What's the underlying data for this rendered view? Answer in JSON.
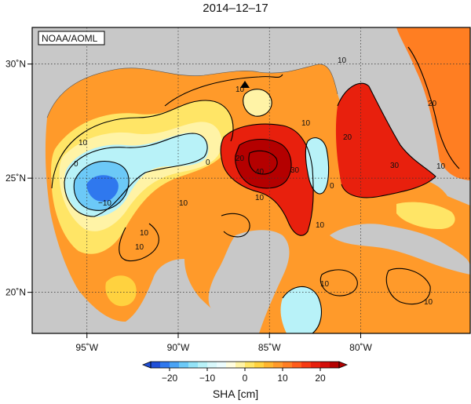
{
  "title": "2014–12–17",
  "credit": "NOAA/AOML",
  "colorbar": {
    "label": "SHA [cm]",
    "min": -25,
    "max": 25,
    "step": 2.5,
    "tick_values": [
      -20,
      -10,
      0,
      10,
      20
    ],
    "tick_labels": [
      "−20",
      "−10",
      "0",
      "10",
      "20"
    ],
    "colors": [
      "#1f4fd8",
      "#2f78ee",
      "#4aa3f5",
      "#6cc9f7",
      "#93e3f7",
      "#b8f2f8",
      "#d8f8fb",
      "#ecfcfd",
      "#fffde0",
      "#fff3a6",
      "#ffe566",
      "#ffd23f",
      "#ffb52e",
      "#ff9a2a",
      "#ff7e22",
      "#ff5c1a",
      "#f73a12",
      "#e8200d",
      "#d40e0a",
      "#b40000"
    ]
  },
  "map": {
    "x_ticks": [
      {
        "lon": -95,
        "label": "95˚W"
      },
      {
        "lon": -90,
        "label": "90˚W"
      },
      {
        "lon": -85,
        "label": "85˚W"
      },
      {
        "lon": -80,
        "label": "80˚W"
      }
    ],
    "y_ticks": [
      {
        "lat": 30,
        "label": "30˚N"
      },
      {
        "lat": 25,
        "label": "25˚N"
      },
      {
        "lat": 20,
        "label": "20˚N"
      }
    ],
    "contour_labels": [
      "10",
      "10",
      "10",
      "10",
      "10",
      "10",
      "10",
      "10",
      "10",
      "10",
      "0",
      "0",
      "0",
      "−10",
      "20",
      "20",
      "20",
      "30",
      "30",
      "40",
      "10",
      "10"
    ],
    "marker": "triangle"
  }
}
